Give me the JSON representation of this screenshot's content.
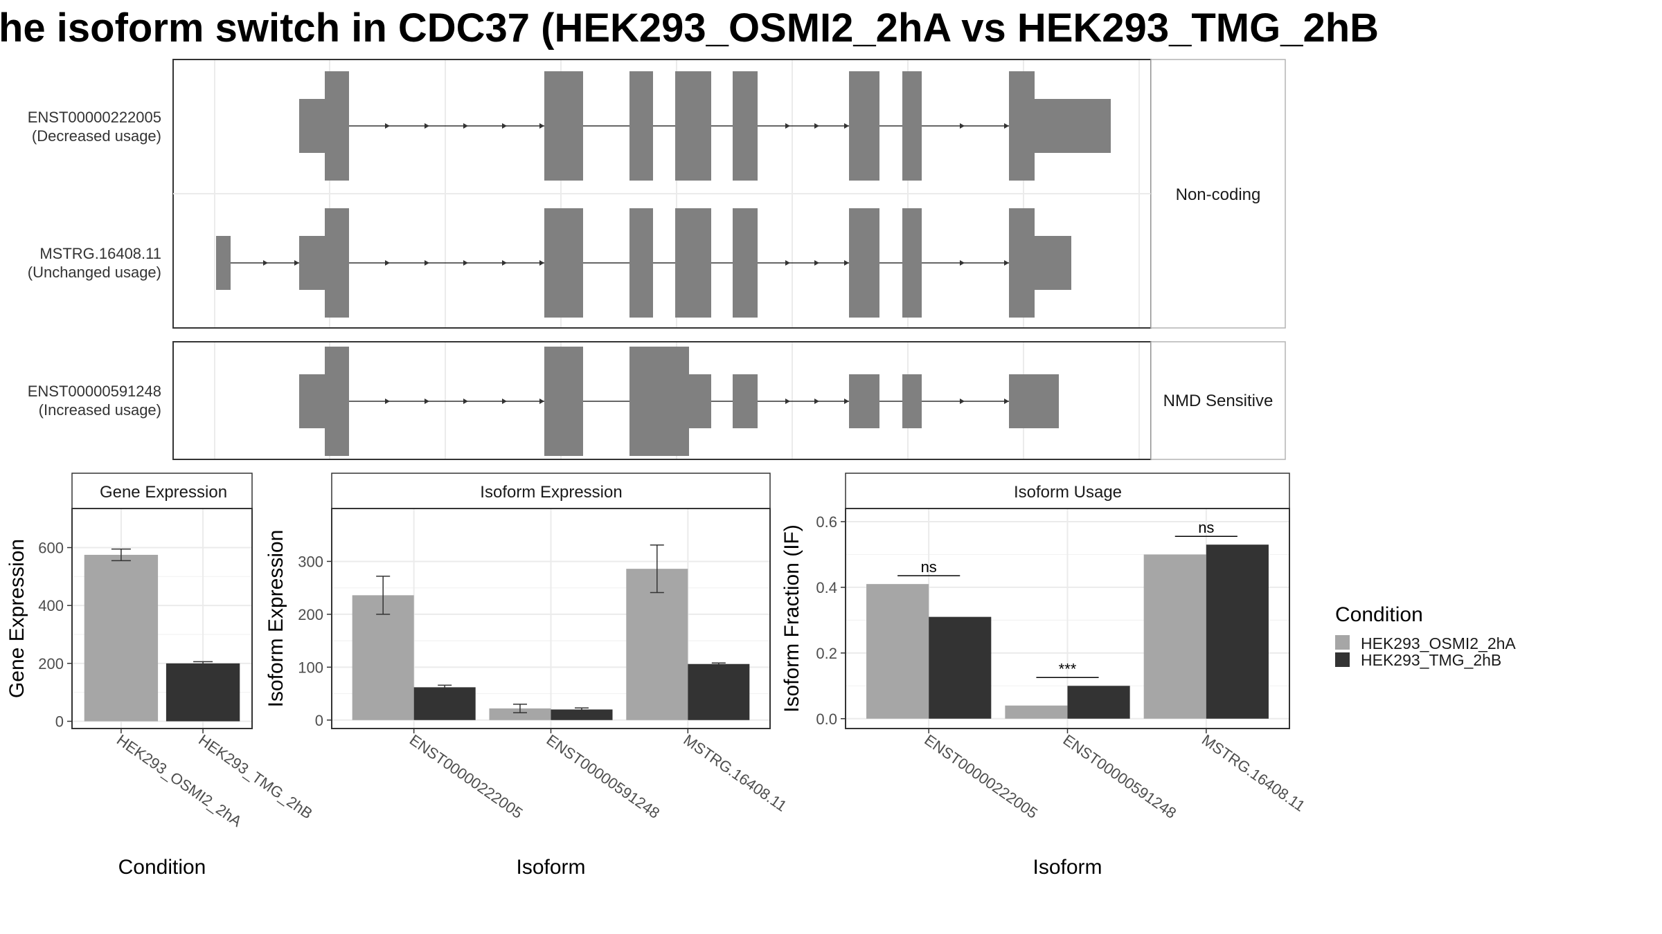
{
  "title": "he isoform switch in CDC37 (HEK293_OSMI2_2hA vs HEK293_TMG_2hB",
  "colors": {
    "condition_a": "#a6a6a6",
    "condition_b": "#333333",
    "exon": "#808080",
    "panel_border": "#333333",
    "strip_border": "#b3b3b3",
    "grid": "#ebebeb"
  },
  "transcript_panels": [
    {
      "strip": "Non-coding",
      "tracks": [
        {
          "id": "ENST00000222005",
          "usage": "(Decreased usage)"
        },
        {
          "id": "MSTRG.16408.11",
          "usage": "(Unchanged usage)"
        }
      ]
    },
    {
      "strip": "NMD Sensitive",
      "tracks": [
        {
          "id": "ENST00000591248",
          "usage": "(Increased usage)"
        }
      ]
    }
  ],
  "legend": {
    "title": "Condition",
    "items": [
      {
        "label": "HEK293_OSMI2_2hA",
        "color": "#a6a6a6"
      },
      {
        "label": "HEK293_TMG_2hB",
        "color": "#333333"
      }
    ]
  },
  "chart_data": [
    {
      "type": "bar",
      "title": "Gene Expression",
      "xlabel": "Condition",
      "ylabel": "Gene Expression",
      "categories": [
        "HEK293_OSMI2_2hA",
        "HEK293_TMG_2hB"
      ],
      "values": [
        575,
        200
      ],
      "error": [
        [
          555,
          595
        ],
        [
          194,
          206
        ]
      ],
      "ylim": [
        -25,
        735
      ],
      "yticks": [
        0,
        200,
        400,
        600
      ],
      "grid": true
    },
    {
      "type": "bar",
      "title": "Isoform Expression",
      "xlabel": "Isoform",
      "ylabel": "Isoform Expression",
      "categories": [
        "ENST00000222005",
        "ENST00000591248",
        "MSTRG.16408.11"
      ],
      "series": [
        {
          "name": "HEK293_OSMI2_2hA",
          "values": [
            236,
            22,
            286
          ],
          "error": [
            [
              200,
              272
            ],
            [
              14,
              30
            ],
            [
              241,
              331
            ]
          ]
        },
        {
          "name": "HEK293_TMG_2hB",
          "values": [
            62,
            20,
            106
          ],
          "error": [
            [
              57,
              66
            ],
            [
              17,
              23
            ],
            [
              104,
              108
            ]
          ]
        }
      ],
      "ylim": [
        -16,
        400
      ],
      "yticks": [
        0,
        100,
        200,
        300
      ],
      "grid": true
    },
    {
      "type": "bar",
      "title": "Isoform Usage",
      "xlabel": "Isoform",
      "ylabel": "Isoform Fraction (IF)",
      "categories": [
        "ENST00000222005",
        "ENST00000591248",
        "MSTRG.16408.11"
      ],
      "series": [
        {
          "name": "HEK293_OSMI2_2hA",
          "values": [
            0.41,
            0.04,
            0.5
          ]
        },
        {
          "name": "HEK293_TMG_2hB",
          "values": [
            0.31,
            0.1,
            0.53
          ]
        }
      ],
      "significance": [
        "ns",
        "***",
        "ns"
      ],
      "ylim": [
        -0.03,
        0.64
      ],
      "yticks": [
        "0.0",
        "0.2",
        "0.4",
        "0.6"
      ],
      "grid": true
    }
  ]
}
